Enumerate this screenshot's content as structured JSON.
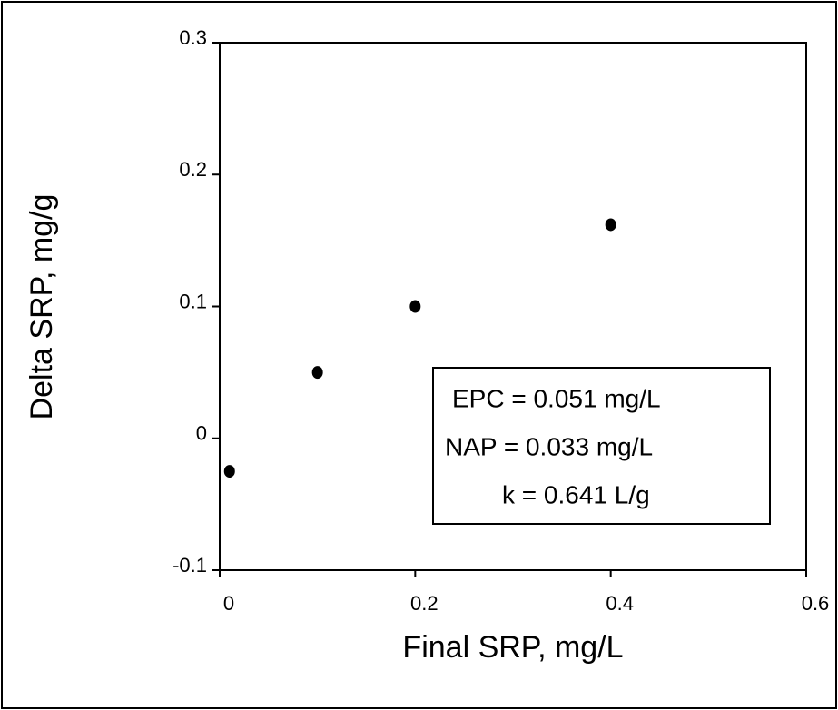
{
  "chart_data": {
    "type": "scatter",
    "x_label": "Final SRP, mg/L",
    "y_label": "Delta SRP, mg/g",
    "x": [
      0.01,
      0.1,
      0.2,
      0.4
    ],
    "series": [
      {
        "color": "#000000",
        "values": [
          -0.025,
          0.05,
          0.1,
          0.162
        ]
      }
    ],
    "xlim": [
      0,
      0.6
    ],
    "xticks": [
      0,
      0.2,
      0.4,
      0.6
    ],
    "ylim": [
      -0.1,
      0.3
    ],
    "yticks": [
      -0.1,
      0,
      0.1,
      0.2,
      0.3
    ],
    "annotations": [
      "EPC = 0.051 mg/L",
      "NAP = 0.033 mg/L",
      "k  = 0.641 L/g"
    ]
  }
}
